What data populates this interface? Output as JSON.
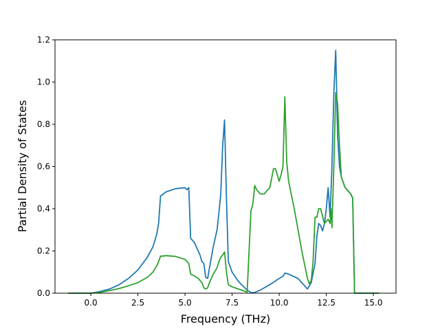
{
  "chart_data": {
    "type": "line",
    "title": "",
    "xlabel": "Frequency (THz)",
    "ylabel": "Partial Density of States",
    "xlim": [
      -1.9,
      16.2
    ],
    "ylim": [
      0.0,
      1.2
    ],
    "xticks": [
      0.0,
      2.5,
      5.0,
      7.5,
      10.0,
      12.5,
      15.0
    ],
    "xtick_labels": [
      "0.0",
      "2.5",
      "5.0",
      "7.5",
      "10.0",
      "12.5",
      "15.0"
    ],
    "yticks": [
      0.0,
      0.2,
      0.4,
      0.6,
      0.8,
      1.0,
      1.2
    ],
    "ytick_labels": [
      "0.0",
      "0.2",
      "0.4",
      "0.6",
      "0.8",
      "1.0",
      "1.2"
    ],
    "grid": false,
    "legend": "none",
    "series": [
      {
        "color": "#1f77b4",
        "x": [
          -1.2,
          0.0,
          0.5,
          1.0,
          1.5,
          2.0,
          2.5,
          3.0,
          3.3,
          3.5,
          3.6,
          3.7,
          4.0,
          4.5,
          5.0,
          5.1,
          5.2,
          5.3,
          5.5,
          5.7,
          5.8,
          5.9,
          6.0,
          6.1,
          6.2,
          6.3,
          6.5,
          6.7,
          6.8,
          6.9,
          7.0,
          7.1,
          7.2,
          7.3,
          7.5,
          7.8,
          8.0,
          8.3,
          8.5,
          8.7,
          9.0,
          9.5,
          10.0,
          10.2,
          10.3,
          10.5,
          11.0,
          11.3,
          11.5,
          11.7,
          11.9,
          12.0,
          12.1,
          12.2,
          12.3,
          12.4,
          12.5,
          12.6,
          12.7,
          12.8,
          12.9,
          13.0,
          13.05,
          13.1,
          13.2,
          13.3,
          13.5,
          13.8,
          13.9,
          14.0,
          15.3
        ],
        "y": [
          0.0,
          0.0,
          0.008,
          0.02,
          0.04,
          0.07,
          0.11,
          0.17,
          0.22,
          0.28,
          0.33,
          0.46,
          0.48,
          0.495,
          0.5,
          0.49,
          0.5,
          0.26,
          0.24,
          0.2,
          0.18,
          0.15,
          0.14,
          0.075,
          0.07,
          0.12,
          0.22,
          0.3,
          0.38,
          0.47,
          0.7,
          0.82,
          0.45,
          0.15,
          0.1,
          0.06,
          0.04,
          0.015,
          0.003,
          0.003,
          0.015,
          0.04,
          0.07,
          0.08,
          0.095,
          0.09,
          0.07,
          0.04,
          0.02,
          0.05,
          0.14,
          0.27,
          0.33,
          0.32,
          0.295,
          0.33,
          0.4,
          0.5,
          0.36,
          0.6,
          0.95,
          1.15,
          0.95,
          0.75,
          0.6,
          0.55,
          0.5,
          0.47,
          0.45,
          0.0,
          0.0
        ]
      },
      {
        "color": "#2ca02c",
        "x": [
          -1.2,
          0.0,
          0.5,
          1.0,
          1.5,
          2.0,
          2.5,
          3.0,
          3.3,
          3.5,
          3.6,
          3.7,
          4.0,
          4.5,
          5.0,
          5.1,
          5.2,
          5.3,
          5.5,
          5.7,
          5.8,
          5.9,
          6.0,
          6.1,
          6.2,
          6.3,
          6.5,
          6.7,
          6.8,
          6.9,
          7.0,
          7.1,
          7.2,
          7.3,
          7.5,
          8.0,
          8.3,
          8.4,
          8.5,
          8.6,
          8.7,
          8.8,
          9.0,
          9.2,
          9.5,
          9.7,
          9.8,
          10.0,
          10.1,
          10.2,
          10.3,
          10.4,
          10.5,
          10.8,
          11.2,
          11.5,
          11.6,
          11.7,
          11.8,
          11.9,
          12.0,
          12.1,
          12.2,
          12.4,
          12.5,
          12.6,
          12.7,
          12.75,
          12.8,
          12.9,
          13.0,
          13.1,
          13.2,
          13.3,
          13.5,
          13.8,
          13.9,
          14.0,
          15.3
        ],
        "y": [
          0.0,
          0.0,
          0.004,
          0.012,
          0.022,
          0.035,
          0.05,
          0.075,
          0.1,
          0.13,
          0.15,
          0.175,
          0.178,
          0.174,
          0.16,
          0.15,
          0.14,
          0.09,
          0.082,
          0.07,
          0.06,
          0.05,
          0.025,
          0.02,
          0.025,
          0.05,
          0.09,
          0.12,
          0.15,
          0.17,
          0.18,
          0.195,
          0.1,
          0.04,
          0.03,
          0.015,
          0.005,
          0.2,
          0.39,
          0.42,
          0.51,
          0.49,
          0.47,
          0.47,
          0.5,
          0.59,
          0.59,
          0.53,
          0.56,
          0.6,
          0.93,
          0.62,
          0.53,
          0.4,
          0.2,
          0.07,
          0.045,
          0.06,
          0.15,
          0.36,
          0.36,
          0.4,
          0.4,
          0.33,
          0.34,
          0.35,
          0.33,
          0.4,
          0.31,
          0.6,
          0.95,
          0.9,
          0.7,
          0.55,
          0.5,
          0.47,
          0.45,
          0.0,
          0.0
        ]
      }
    ]
  }
}
